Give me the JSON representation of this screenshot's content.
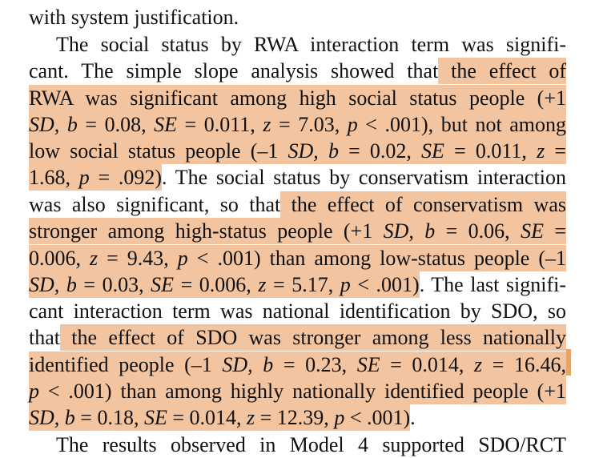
{
  "lines": [
    {
      "id": "l0",
      "segments": [
        {
          "t": "with system justification.",
          "h": false
        }
      ]
    },
    {
      "id": "l1",
      "segments": [
        {
          "t": "The social status by RWA interaction term was signifi-",
          "h": false
        }
      ]
    },
    {
      "id": "l2",
      "segments": [
        {
          "t": "cant. The simple slope analysis showed that",
          "h": false
        },
        {
          "t": " the effect of",
          "h": true
        }
      ]
    },
    {
      "id": "l3",
      "segments": [
        {
          "t": "RWA was significant among high social status people (+1",
          "h": true
        }
      ]
    },
    {
      "id": "l4",
      "segments": [
        {
          "t": "SD, b",
          "h": true,
          "i": true
        },
        {
          "t": " = 0.08, ",
          "h": true
        },
        {
          "t": "SE",
          "h": true,
          "i": true
        },
        {
          "t": " = 0.011, ",
          "h": true
        },
        {
          "t": "z",
          "h": true,
          "i": true
        },
        {
          "t": " = 7.03, ",
          "h": true
        },
        {
          "t": "p",
          "h": true,
          "i": true
        },
        {
          "t": " < .001), but not among",
          "h": true
        }
      ]
    },
    {
      "id": "l5",
      "segments": [
        {
          "t": "low social status people (–1 ",
          "h": true
        },
        {
          "t": "SD, b",
          "h": true,
          "i": true
        },
        {
          "t": " = 0.02, ",
          "h": true
        },
        {
          "t": "SE",
          "h": true,
          "i": true
        },
        {
          "t": " = 0.011, ",
          "h": true
        },
        {
          "t": "z",
          "h": true,
          "i": true
        },
        {
          "t": " =",
          "h": true
        }
      ]
    },
    {
      "id": "l6",
      "segments": [
        {
          "t": "1.68, ",
          "h": true
        },
        {
          "t": "p",
          "h": true,
          "i": true
        },
        {
          "t": " = .092)",
          "h": true
        },
        {
          "t": ". The social status by conservatism interaction",
          "h": false
        }
      ]
    },
    {
      "id": "l7",
      "segments": [
        {
          "t": "was also significant, so that",
          "h": false
        },
        {
          "t": " the effect of conservatism was",
          "h": true
        }
      ]
    },
    {
      "id": "l8",
      "segments": [
        {
          "t": "stronger among high-status people (+1 ",
          "h": true
        },
        {
          "t": "SD, b",
          "h": true,
          "i": true
        },
        {
          "t": " = 0.06, ",
          "h": true
        },
        {
          "t": "SE",
          "h": true,
          "i": true
        },
        {
          "t": " =",
          "h": true
        }
      ]
    },
    {
      "id": "l9",
      "segments": [
        {
          "t": "0.006, ",
          "h": true
        },
        {
          "t": "z",
          "h": true,
          "i": true
        },
        {
          "t": " = 9.43, ",
          "h": true
        },
        {
          "t": "p",
          "h": true,
          "i": true
        },
        {
          "t": " < .001) than among low-status people (–1",
          "h": true
        }
      ]
    },
    {
      "id": "l10",
      "segments": [
        {
          "t": "SD, b",
          "h": true,
          "i": true
        },
        {
          "t": " = 0.03, ",
          "h": true
        },
        {
          "t": "SE",
          "h": true,
          "i": true
        },
        {
          "t": " = 0.006, ",
          "h": true
        },
        {
          "t": "z",
          "h": true,
          "i": true
        },
        {
          "t": " = 5.17, ",
          "h": true
        },
        {
          "t": "p",
          "h": true,
          "i": true
        },
        {
          "t": " < .001)",
          "h": true
        },
        {
          "t": ". The last signifi-",
          "h": false
        }
      ]
    },
    {
      "id": "l11",
      "segments": [
        {
          "t": "cant interaction term was national identification by SDO, so",
          "h": false
        }
      ]
    },
    {
      "id": "l12",
      "segments": [
        {
          "t": "that",
          "h": false
        },
        {
          "t": " the effect of SDO was stronger among less nationally",
          "h": true
        }
      ]
    },
    {
      "id": "l13",
      "segments": [
        {
          "t": "identified people (–1 ",
          "h": true
        },
        {
          "t": "SD, b",
          "h": true,
          "i": true
        },
        {
          "t": " = 0.23, ",
          "h": true
        },
        {
          "t": "SE",
          "h": true,
          "i": true
        },
        {
          "t": " = 0.014, ",
          "h": true
        },
        {
          "t": "z",
          "h": true,
          "i": true
        },
        {
          "t": " = 16.46,",
          "h": true
        }
      ]
    },
    {
      "id": "l14",
      "segments": [
        {
          "t": "p",
          "h": true,
          "i": true
        },
        {
          "t": " < .001) than among highly nationally identified people (+1",
          "h": true
        }
      ]
    },
    {
      "id": "l15",
      "segments": [
        {
          "t": "SD, b",
          "h": true,
          "i": true
        },
        {
          "t": " = 0.18, ",
          "h": true
        },
        {
          "t": "SE",
          "h": true,
          "i": true
        },
        {
          "t": " = 0.014, ",
          "h": true
        },
        {
          "t": "z",
          "h": true,
          "i": true
        },
        {
          "t": " = 12.39, ",
          "h": true
        },
        {
          "t": "p",
          "h": true,
          "i": true
        },
        {
          "t": " < .001)",
          "h": true
        },
        {
          "t": ".",
          "h": false
        }
      ]
    },
    {
      "id": "l16",
      "segments": [
        {
          "t": "The results observed in Model 4 supported SDO/RCT",
          "h": false
        }
      ]
    }
  ],
  "colors": {
    "highlight": "#f2c4a0",
    "marker": "#e9a468",
    "text": "#111111"
  }
}
